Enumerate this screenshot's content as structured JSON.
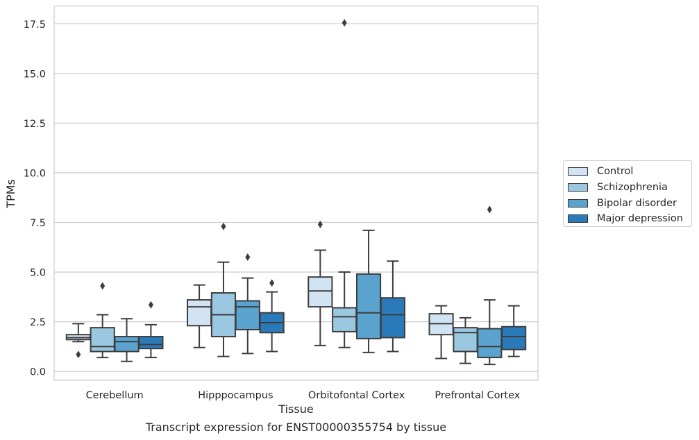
{
  "chart_data": {
    "type": "box",
    "caption": "Transcript expression for ENST00000355754 by tissue",
    "xlabel": "Tissue",
    "ylabel": "TPMs",
    "ylim": [
      -0.45,
      18.4
    ],
    "yticks": [
      0.0,
      2.5,
      5.0,
      7.5,
      10.0,
      12.5,
      15.0,
      17.5
    ],
    "ytick_labels": [
      "0.0",
      "2.5",
      "5.0",
      "7.5",
      "10.0",
      "12.5",
      "15.0",
      "17.5"
    ],
    "grid": "horizontal",
    "legend_position": "right, outside plot",
    "categories": [
      "Cerebellum",
      "Hipppocampus",
      "Orbitofontal Cortex",
      "Prefrontal Cortex"
    ],
    "series": [
      {
        "name": "Control",
        "color": "#d2e3f3",
        "boxes": [
          {
            "whisker_low": 1.5,
            "q1": 1.6,
            "median": 1.7,
            "q3": 1.85,
            "whisker_high": 2.4,
            "outliers": [
              0.85
            ]
          },
          {
            "whisker_low": 1.2,
            "q1": 2.3,
            "median": 3.25,
            "q3": 3.6,
            "whisker_high": 4.35,
            "outliers": []
          },
          {
            "whisker_low": 1.3,
            "q1": 3.25,
            "median": 4.05,
            "q3": 4.75,
            "whisker_high": 6.1,
            "outliers": [
              7.4
            ]
          },
          {
            "whisker_low": 0.65,
            "q1": 1.85,
            "median": 2.4,
            "q3": 2.9,
            "whisker_high": 3.3,
            "outliers": []
          }
        ]
      },
      {
        "name": "Schizophrenia",
        "color": "#9ac8e0",
        "boxes": [
          {
            "whisker_low": 0.7,
            "q1": 1.0,
            "median": 1.25,
            "q3": 2.2,
            "whisker_high": 2.85,
            "outliers": [
              4.3
            ]
          },
          {
            "whisker_low": 0.75,
            "q1": 1.75,
            "median": 2.85,
            "q3": 3.95,
            "whisker_high": 5.5,
            "outliers": [
              7.3
            ]
          },
          {
            "whisker_low": 1.2,
            "q1": 2.0,
            "median": 2.75,
            "q3": 3.2,
            "whisker_high": 5.0,
            "outliers": [
              17.55
            ]
          },
          {
            "whisker_low": 0.4,
            "q1": 1.0,
            "median": 1.95,
            "q3": 2.2,
            "whisker_high": 2.7,
            "outliers": []
          }
        ]
      },
      {
        "name": "Bipolar disorder",
        "color": "#5ba3cf",
        "boxes": [
          {
            "whisker_low": 0.5,
            "q1": 1.0,
            "median": 1.5,
            "q3": 1.75,
            "whisker_high": 2.65,
            "outliers": []
          },
          {
            "whisker_low": 0.9,
            "q1": 2.1,
            "median": 3.25,
            "q3": 3.55,
            "whisker_high": 4.7,
            "outliers": [
              5.75
            ]
          },
          {
            "whisker_low": 0.95,
            "q1": 1.65,
            "median": 2.95,
            "q3": 4.9,
            "whisker_high": 7.1,
            "outliers": []
          },
          {
            "whisker_low": 0.35,
            "q1": 0.7,
            "median": 1.25,
            "q3": 2.15,
            "whisker_high": 3.6,
            "outliers": [
              8.15
            ]
          }
        ]
      },
      {
        "name": "Major depression",
        "color": "#2a7ab9",
        "boxes": [
          {
            "whisker_low": 0.7,
            "q1": 1.15,
            "median": 1.35,
            "q3": 1.75,
            "whisker_high": 2.35,
            "outliers": [
              3.35
            ]
          },
          {
            "whisker_low": 1.0,
            "q1": 1.95,
            "median": 2.45,
            "q3": 2.95,
            "whisker_high": 4.0,
            "outliers": [
              4.45
            ]
          },
          {
            "whisker_low": 1.0,
            "q1": 1.7,
            "median": 2.85,
            "q3": 3.7,
            "whisker_high": 5.55,
            "outliers": []
          },
          {
            "whisker_low": 0.75,
            "q1": 1.1,
            "median": 1.75,
            "q3": 2.25,
            "whisker_high": 3.3,
            "outliers": []
          }
        ]
      }
    ]
  }
}
